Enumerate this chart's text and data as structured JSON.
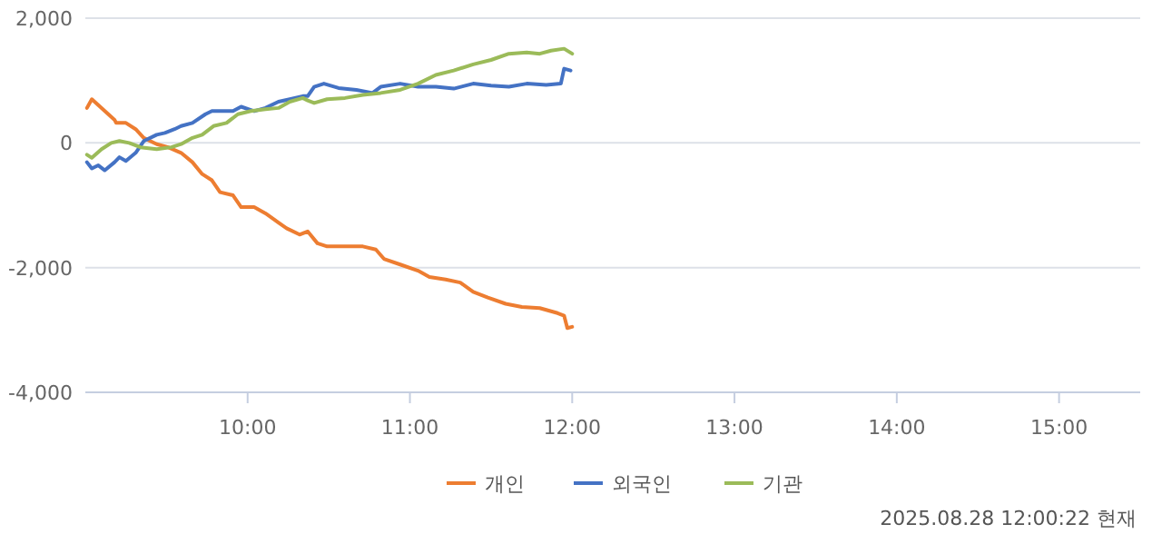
{
  "chart_data": {
    "type": "line",
    "xlim": [
      9,
      15.5
    ],
    "ylim": [
      -4000,
      2000
    ],
    "xticks": [
      {
        "value": 10,
        "label": "10:00"
      },
      {
        "value": 11,
        "label": "11:00"
      },
      {
        "value": 12,
        "label": "12:00"
      },
      {
        "value": 13,
        "label": "13:00"
      },
      {
        "value": 14,
        "label": "14:00"
      },
      {
        "value": 15,
        "label": "15:00"
      }
    ],
    "yticks": [
      {
        "value": -4000,
        "label": "-4,000"
      },
      {
        "value": -2000,
        "label": "-2,000"
      },
      0,
      {
        "value": 2000,
        "label": "2,000"
      }
    ],
    "grid": "y",
    "legend": "bottom",
    "line_style": "solid",
    "marker": "none",
    "annotations": [
      "2025.08.28 12:00:22 현재"
    ],
    "series": [
      {
        "name": "개인",
        "color": "#ed7d31",
        "x": [
          9.01,
          9.04,
          9.12,
          9.18,
          9.19,
          9.25,
          9.31,
          9.36,
          9.44,
          9.51,
          9.59,
          9.66,
          9.72,
          9.78,
          9.83,
          9.91,
          9.96,
          10.04,
          10.11,
          10.19,
          10.24,
          10.32,
          10.37,
          10.43,
          10.49,
          10.6,
          10.71,
          10.79,
          10.84,
          10.94,
          11.05,
          11.12,
          11.22,
          11.31,
          11.39,
          11.48,
          11.59,
          11.69,
          11.8,
          11.91,
          11.95,
          11.97,
          12.0
        ],
        "values": [
          560,
          700,
          510,
          370,
          320,
          320,
          220,
          80,
          -20,
          -70,
          -160,
          -310,
          -500,
          -600,
          -790,
          -840,
          -1030,
          -1030,
          -1130,
          -1280,
          -1370,
          -1470,
          -1420,
          -1610,
          -1660,
          -1660,
          -1660,
          -1710,
          -1860,
          -1950,
          -2050,
          -2150,
          -2190,
          -2240,
          -2390,
          -2480,
          -2580,
          -2630,
          -2650,
          -2730,
          -2770,
          -2970,
          -2950
        ]
      },
      {
        "name": "외국인",
        "color": "#4472c4",
        "x": [
          9.01,
          9.04,
          9.08,
          9.12,
          9.18,
          9.21,
          9.25,
          9.31,
          9.36,
          9.44,
          9.49,
          9.55,
          9.59,
          9.66,
          9.74,
          9.78,
          9.83,
          9.91,
          9.96,
          10.04,
          10.11,
          10.19,
          10.26,
          10.34,
          10.37,
          10.41,
          10.47,
          10.56,
          10.67,
          10.77,
          10.82,
          10.94,
          11.05,
          11.16,
          11.27,
          11.39,
          11.5,
          11.61,
          11.72,
          11.84,
          11.93,
          11.95,
          11.99
        ],
        "values": [
          -310,
          -410,
          -360,
          -440,
          -310,
          -230,
          -290,
          -160,
          30,
          130,
          160,
          220,
          270,
          320,
          460,
          510,
          510,
          510,
          580,
          510,
          560,
          660,
          700,
          750,
          750,
          900,
          950,
          880,
          850,
          800,
          900,
          950,
          900,
          900,
          870,
          950,
          920,
          900,
          950,
          930,
          950,
          1190,
          1160
        ]
      },
      {
        "name": "기관",
        "color": "#9bbb59",
        "x": [
          9.01,
          9.04,
          9.1,
          9.16,
          9.21,
          9.27,
          9.34,
          9.44,
          9.53,
          9.59,
          9.66,
          9.72,
          9.79,
          9.87,
          9.94,
          10.02,
          10.11,
          10.19,
          10.26,
          10.34,
          10.37,
          10.41,
          10.49,
          10.6,
          10.71,
          10.82,
          10.94,
          11.05,
          11.16,
          11.27,
          11.39,
          11.5,
          11.61,
          11.72,
          11.8,
          11.87,
          11.95,
          12.0
        ],
        "values": [
          -190,
          -240,
          -100,
          0,
          30,
          0,
          -70,
          -100,
          -70,
          -20,
          80,
          130,
          270,
          320,
          460,
          510,
          540,
          560,
          660,
          720,
          680,
          640,
          700,
          720,
          770,
          800,
          850,
          950,
          1090,
          1160,
          1260,
          1330,
          1430,
          1450,
          1430,
          1480,
          1510,
          1430
        ]
      }
    ]
  }
}
